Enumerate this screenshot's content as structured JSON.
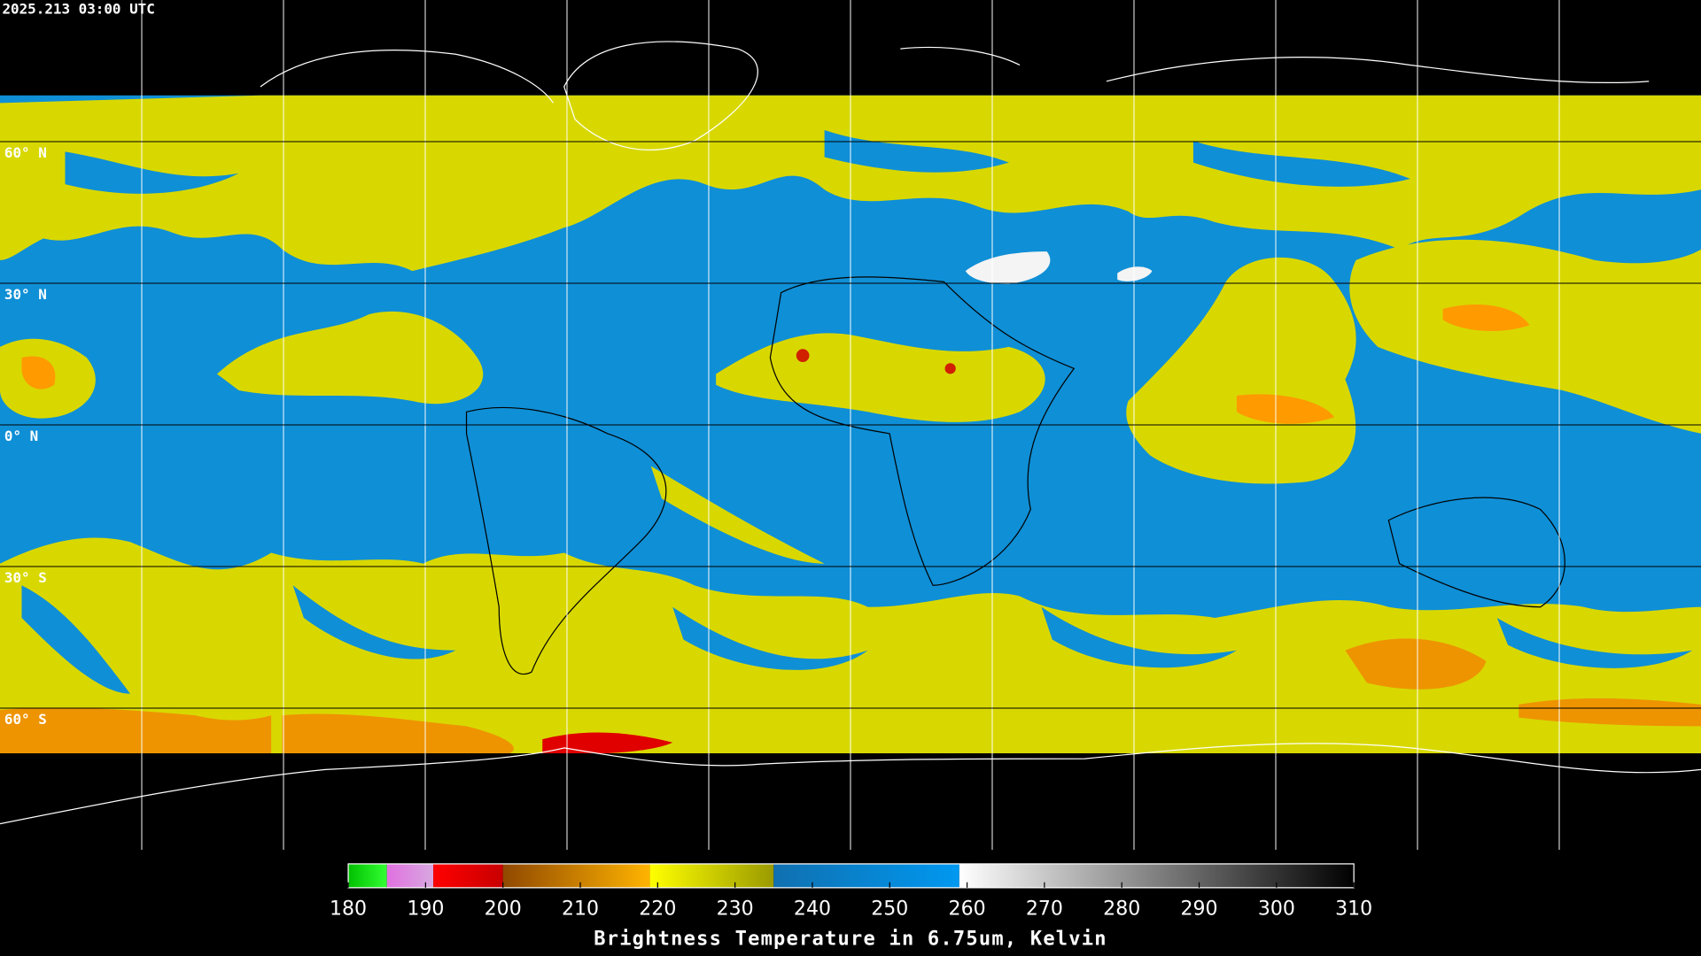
{
  "header": {
    "timestamp": "2025.213 03:00 UTC"
  },
  "map": {
    "latitude_labels": [
      "60° N",
      "30° N",
      "0° N",
      "30° S",
      "60° S"
    ]
  },
  "colorbar": {
    "title": "Brightness Temperature in 6.75um, Kelvin",
    "range": [
      180,
      310
    ],
    "ticks": [
      180,
      190,
      200,
      210,
      220,
      230,
      240,
      250,
      260,
      270,
      280,
      290,
      300,
      310
    ],
    "segments": [
      {
        "from": 180,
        "to": 185,
        "color_start": "#00c000",
        "color_end": "#33ff33"
      },
      {
        "from": 185,
        "to": 191,
        "color_start": "#e070e0",
        "color_end": "#d8a8e0"
      },
      {
        "from": 191,
        "to": 200,
        "color_start": "#ff0000",
        "color_end": "#c80000"
      },
      {
        "from": 200,
        "to": 219,
        "color_start": "#904800",
        "color_end": "#ffb400"
      },
      {
        "from": 219,
        "to": 235,
        "color_start": "#ffff00",
        "color_end": "#9a9a00"
      },
      {
        "from": 235,
        "to": 259,
        "color_start": "#1070b0",
        "color_end": "#0098f0"
      },
      {
        "from": 259,
        "to": 310,
        "color_start": "#ffffff",
        "color_end": "#000000"
      }
    ]
  }
}
